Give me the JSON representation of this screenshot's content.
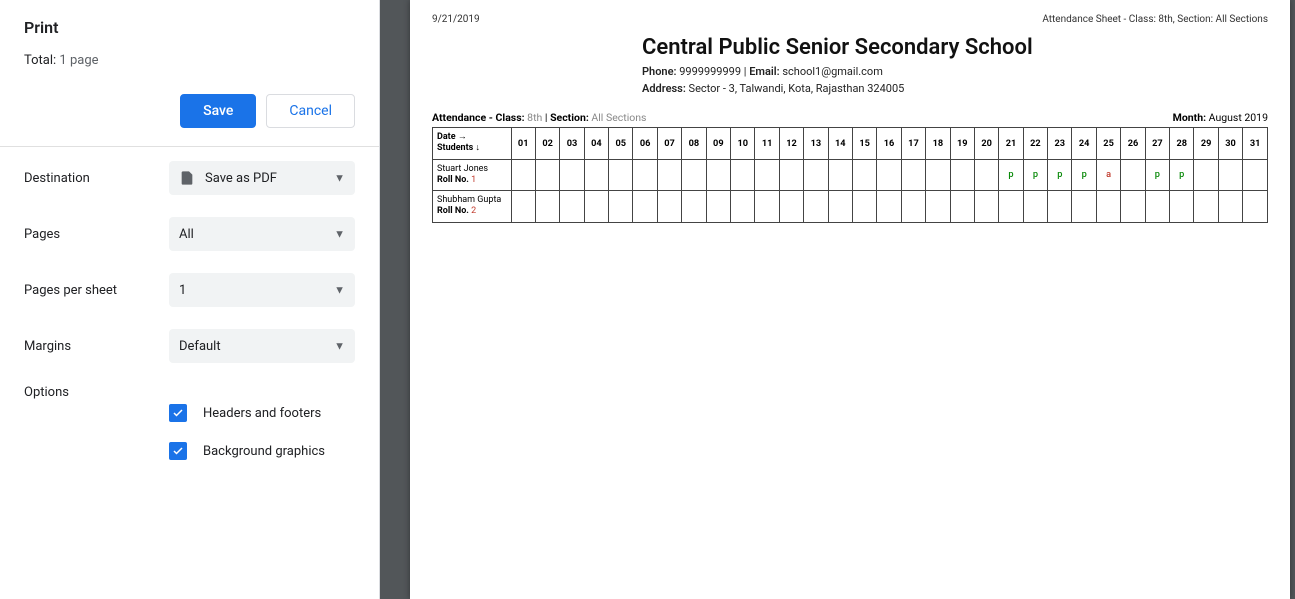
{
  "print_panel": {
    "title": "Print",
    "total_label": "Total:",
    "total_pages": "1 page",
    "save_btn": "Save",
    "cancel_btn": "Cancel",
    "rows": {
      "destination": {
        "label": "Destination",
        "value": "Save as PDF"
      },
      "pages": {
        "label": "Pages",
        "value": "All"
      },
      "pps": {
        "label": "Pages per sheet",
        "value": "1"
      },
      "margins": {
        "label": "Margins",
        "value": "Default"
      }
    },
    "options_label": "Options",
    "checks": {
      "headers": {
        "label": "Headers and footers",
        "checked": true
      },
      "bg": {
        "label": "Background graphics",
        "checked": true
      }
    }
  },
  "colors": {
    "primary": "#1a73e8",
    "panel_select_bg": "#f1f3f4",
    "preview_bg": "#525659",
    "present": "#0a8a0a",
    "absent": "#c0392b",
    "muted": "#888888",
    "border": "#444444"
  },
  "preview": {
    "header_date": "9/21/2019",
    "header_title": "Attendance Sheet - Class: 8th, Section: All Sections",
    "school": {
      "name": "Central Public Senior Secondary School",
      "phone_label": "Phone:",
      "phone": "9999999999",
      "email_label": "Email:",
      "email": "school1@gmail.com",
      "address_label": "Address:",
      "address": "Sector - 3, Talwandi, Kota, Rajasthan 324005"
    },
    "meta": {
      "att_label": "Attendance - Class:",
      "class": "8th",
      "section_label": "Section:",
      "section": "All Sections",
      "month_label": "Month:",
      "month": "August 2019"
    },
    "table": {
      "col_header_top": "Date →",
      "col_header_bottom": "Students ↓",
      "roll_label": "Roll No.",
      "days": [
        "01",
        "02",
        "03",
        "04",
        "05",
        "06",
        "07",
        "08",
        "09",
        "10",
        "11",
        "12",
        "13",
        "14",
        "15",
        "16",
        "17",
        "18",
        "19",
        "20",
        "21",
        "22",
        "23",
        "24",
        "25",
        "26",
        "27",
        "28",
        "29",
        "30",
        "31"
      ],
      "students": [
        {
          "name": "Stuart Jones",
          "roll": "1",
          "marks": {
            "21": "p",
            "22": "p",
            "23": "p",
            "24": "p",
            "25": "a",
            "27": "p",
            "28": "p"
          }
        },
        {
          "name": "Shubham Gupta",
          "roll": "2",
          "marks": {}
        }
      ]
    }
  }
}
